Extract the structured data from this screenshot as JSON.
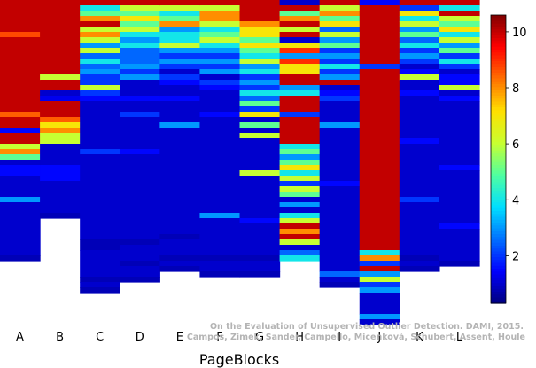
{
  "chart_data": {
    "type": "heatmap",
    "xlabel": "PageBlocks",
    "categories": [
      "A",
      "B",
      "C",
      "D",
      "E",
      "F",
      "G",
      "H",
      "I",
      "J",
      "K",
      "L"
    ],
    "colorbar": {
      "range": [
        0.3,
        10.6
      ],
      "ticks": [
        2,
        4,
        6,
        8,
        10
      ],
      "colormap": [
        "#00007f",
        "#0000ff",
        "#0070ff",
        "#00dfff",
        "#50ffa0",
        "#c8ff30",
        "#ffe000",
        "#ff7000",
        "#ff0000",
        "#7f0000"
      ]
    },
    "rows_per_column": 60,
    "columns": [
      {
        "name": "A",
        "segments": [
          [
            6,
            10
          ],
          [
            1,
            8.7
          ],
          [
            14,
            10
          ],
          [
            1,
            8.5
          ],
          [
            2,
            10
          ],
          [
            1,
            1.5
          ],
          [
            2,
            10
          ],
          [
            1,
            6
          ],
          [
            1,
            8
          ],
          [
            1,
            5
          ],
          [
            1,
            1
          ],
          [
            2,
            1.5
          ],
          [
            4,
            1
          ],
          [
            1,
            3
          ],
          [
            10,
            1
          ],
          [
            1,
            0.8
          ]
        ]
      },
      {
        "name": "B",
        "segments": [
          [
            14,
            10
          ],
          [
            1,
            6
          ],
          [
            2,
            10
          ],
          [
            1,
            1
          ],
          [
            1,
            1.3
          ],
          [
            3,
            10
          ],
          [
            1,
            8.5
          ],
          [
            1,
            7
          ],
          [
            1,
            8
          ],
          [
            2,
            6
          ],
          [
            4,
            1
          ],
          [
            3,
            1.5
          ],
          [
            6,
            1
          ],
          [
            1,
            0.8
          ]
        ]
      },
      {
        "name": "C",
        "segments": [
          [
            1,
            10
          ],
          [
            1,
            4
          ],
          [
            1,
            5
          ],
          [
            1,
            8
          ],
          [
            1,
            10
          ],
          [
            1,
            6
          ],
          [
            1,
            8
          ],
          [
            1,
            6
          ],
          [
            1,
            3
          ],
          [
            1,
            6
          ],
          [
            1,
            2.5
          ],
          [
            1,
            4
          ],
          [
            1,
            2.5
          ],
          [
            1,
            3
          ],
          [
            2,
            2
          ],
          [
            1,
            6
          ],
          [
            1,
            2
          ],
          [
            1,
            1.5
          ],
          [
            9,
            1
          ],
          [
            1,
            2
          ],
          [
            16,
            1
          ],
          [
            2,
            0.8
          ],
          [
            5,
            1
          ],
          [
            1,
            0.8
          ],
          [
            1,
            1
          ],
          [
            1,
            0.8
          ]
        ]
      },
      {
        "name": "D",
        "segments": [
          [
            1,
            10
          ],
          [
            1,
            6
          ],
          [
            1,
            5
          ],
          [
            1,
            7
          ],
          [
            1,
            5
          ],
          [
            1,
            6
          ],
          [
            1,
            4
          ],
          [
            1,
            3
          ],
          [
            1,
            4
          ],
          [
            3,
            2.5
          ],
          [
            1,
            3
          ],
          [
            1,
            2
          ],
          [
            1,
            3
          ],
          [
            3,
            1
          ],
          [
            1,
            1.5
          ],
          [
            2,
            1
          ],
          [
            1,
            2
          ],
          [
            6,
            1
          ],
          [
            1,
            1.5
          ],
          [
            16,
            1
          ],
          [
            1,
            0.8
          ],
          [
            3,
            1
          ],
          [
            1,
            0.8
          ],
          [
            2,
            1
          ],
          [
            1,
            0.8
          ]
        ]
      },
      {
        "name": "E",
        "segments": [
          [
            1,
            10
          ],
          [
            1,
            6
          ],
          [
            1,
            4
          ],
          [
            1,
            5
          ],
          [
            1,
            8
          ],
          [
            1,
            3
          ],
          [
            2,
            4
          ],
          [
            1,
            6
          ],
          [
            1,
            3
          ],
          [
            1,
            2
          ],
          [
            1,
            3
          ],
          [
            1,
            2
          ],
          [
            1,
            1
          ],
          [
            1,
            2
          ],
          [
            1,
            1.5
          ],
          [
            2,
            1
          ],
          [
            1,
            1.5
          ],
          [
            4,
            1
          ],
          [
            1,
            3
          ],
          [
            20,
            1
          ],
          [
            1,
            0.8
          ],
          [
            3,
            1
          ],
          [
            1,
            0.8
          ],
          [
            1,
            1
          ],
          [
            1,
            0.8
          ]
        ]
      },
      {
        "name": "F",
        "segments": [
          [
            1,
            10
          ],
          [
            1,
            6
          ],
          [
            2,
            8
          ],
          [
            1,
            6
          ],
          [
            1,
            4
          ],
          [
            1,
            5
          ],
          [
            1,
            6
          ],
          [
            1,
            4
          ],
          [
            1,
            3
          ],
          [
            1,
            2
          ],
          [
            1,
            3
          ],
          [
            1,
            2
          ],
          [
            1,
            3
          ],
          [
            1,
            1
          ],
          [
            1,
            2
          ],
          [
            1,
            1.5
          ],
          [
            4,
            1
          ],
          [
            1,
            1.5
          ],
          [
            18,
            1
          ],
          [
            1,
            3
          ],
          [
            7,
            1
          ],
          [
            1,
            0.8
          ],
          [
            2,
            1
          ],
          [
            1,
            0.8
          ]
        ]
      },
      {
        "name": "G",
        "segments": [
          [
            4,
            10
          ],
          [
            1,
            8
          ],
          [
            2,
            7
          ],
          [
            1,
            5
          ],
          [
            1,
            7
          ],
          [
            1,
            5
          ],
          [
            1,
            4
          ],
          [
            1,
            6
          ],
          [
            1,
            3
          ],
          [
            1,
            4
          ],
          [
            1,
            2
          ],
          [
            1,
            3
          ],
          [
            1,
            2
          ],
          [
            1,
            4
          ],
          [
            1,
            2.5
          ],
          [
            1,
            5
          ],
          [
            1,
            2
          ],
          [
            1,
            7
          ],
          [
            1,
            1
          ],
          [
            1,
            5
          ],
          [
            1,
            1
          ],
          [
            1,
            6
          ],
          [
            6,
            1
          ],
          [
            1,
            6
          ],
          [
            8,
            1
          ],
          [
            1,
            1.5
          ],
          [
            6,
            1
          ],
          [
            1,
            0.8
          ],
          [
            2,
            1
          ],
          [
            1,
            0.8
          ]
        ]
      },
      {
        "name": "H",
        "segments": [
          [
            1,
            1
          ],
          [
            1,
            10
          ],
          [
            1,
            5
          ],
          [
            1,
            8
          ],
          [
            1,
            10
          ],
          [
            1,
            6
          ],
          [
            1,
            10
          ],
          [
            1,
            1
          ],
          [
            1,
            7
          ],
          [
            1,
            9
          ],
          [
            1,
            3
          ],
          [
            1,
            9
          ],
          [
            2,
            7
          ],
          [
            2,
            10
          ],
          [
            1,
            3
          ],
          [
            1,
            4
          ],
          [
            3,
            10
          ],
          [
            1,
            2
          ],
          [
            5,
            10
          ],
          [
            1,
            4
          ],
          [
            1,
            5
          ],
          [
            1,
            3
          ],
          [
            1,
            5
          ],
          [
            1,
            7
          ],
          [
            1,
            4
          ],
          [
            1,
            6
          ],
          [
            1,
            2
          ],
          [
            1,
            6
          ],
          [
            1,
            5
          ],
          [
            1,
            1
          ],
          [
            1,
            3
          ],
          [
            1,
            1
          ],
          [
            1,
            4
          ],
          [
            1,
            6
          ],
          [
            1,
            10
          ],
          [
            1,
            8
          ],
          [
            1,
            10
          ],
          [
            1,
            6
          ],
          [
            1,
            1
          ],
          [
            1,
            2.5
          ],
          [
            1,
            4
          ]
        ]
      },
      {
        "name": "I",
        "segments": [
          [
            1,
            10
          ],
          [
            1,
            6
          ],
          [
            1,
            8
          ],
          [
            1,
            5
          ],
          [
            1,
            7
          ],
          [
            1,
            2.5
          ],
          [
            1,
            6
          ],
          [
            1,
            3
          ],
          [
            1,
            5
          ],
          [
            1,
            2
          ],
          [
            1,
            3
          ],
          [
            1,
            2
          ],
          [
            1,
            4
          ],
          [
            1,
            2
          ],
          [
            1,
            3
          ],
          [
            1,
            10
          ],
          [
            1,
            1
          ],
          [
            1,
            1.5
          ],
          [
            1,
            2
          ],
          [
            4,
            1
          ],
          [
            1,
            3
          ],
          [
            10,
            1
          ],
          [
            1,
            1.5
          ],
          [
            16,
            1
          ],
          [
            1,
            2.5
          ],
          [
            1,
            1
          ],
          [
            1,
            0.8
          ]
        ]
      },
      {
        "name": "J",
        "segments": [
          [
            1,
            1.5
          ],
          [
            11,
            10
          ],
          [
            1,
            2
          ],
          [
            34,
            10
          ],
          [
            1,
            4
          ],
          [
            1,
            8
          ],
          [
            1,
            2
          ],
          [
            1,
            10
          ],
          [
            1,
            3
          ],
          [
            1,
            6
          ],
          [
            1,
            2
          ],
          [
            1,
            3
          ],
          [
            4,
            1
          ],
          [
            1,
            3
          ],
          [
            1,
            1
          ]
        ]
      },
      {
        "name": "K",
        "segments": [
          [
            1,
            10
          ],
          [
            1,
            2
          ],
          [
            1,
            7
          ],
          [
            1,
            4
          ],
          [
            1,
            6
          ],
          [
            1,
            3
          ],
          [
            1,
            5
          ],
          [
            1,
            2.5
          ],
          [
            1,
            4
          ],
          [
            1,
            2
          ],
          [
            1,
            3
          ],
          [
            1,
            2
          ],
          [
            1,
            1
          ],
          [
            1,
            1.5
          ],
          [
            1,
            6
          ],
          [
            2,
            1
          ],
          [
            1,
            1.5
          ],
          [
            8,
            1
          ],
          [
            1,
            1.5
          ],
          [
            10,
            1
          ],
          [
            1,
            2
          ],
          [
            10,
            1
          ],
          [
            1,
            0.8
          ],
          [
            1,
            1
          ],
          [
            1,
            0.8
          ]
        ]
      },
      {
        "name": "L",
        "segments": [
          [
            1,
            10
          ],
          [
            1,
            4
          ],
          [
            1,
            10
          ],
          [
            1,
            6
          ],
          [
            1,
            5
          ],
          [
            1,
            7
          ],
          [
            1,
            4
          ],
          [
            1,
            6
          ],
          [
            1,
            3
          ],
          [
            1,
            5
          ],
          [
            1,
            2
          ],
          [
            1,
            4
          ],
          [
            1,
            2
          ],
          [
            1,
            1
          ],
          [
            2,
            1.5
          ],
          [
            1,
            6
          ],
          [
            1,
            1
          ],
          [
            1,
            1.5
          ],
          [
            12,
            1
          ],
          [
            1,
            1.5
          ],
          [
            10,
            1
          ],
          [
            1,
            1.5
          ],
          [
            6,
            1
          ],
          [
            1,
            0.8
          ]
        ]
      }
    ]
  },
  "credit": {
    "line1": "On the Evaluation of Unsupervised Outlier Detection. DAMI, 2015.",
    "line2": "Campos, Zimek, Sander, Campello, Micenková, Schubert, Assent, Houle"
  }
}
